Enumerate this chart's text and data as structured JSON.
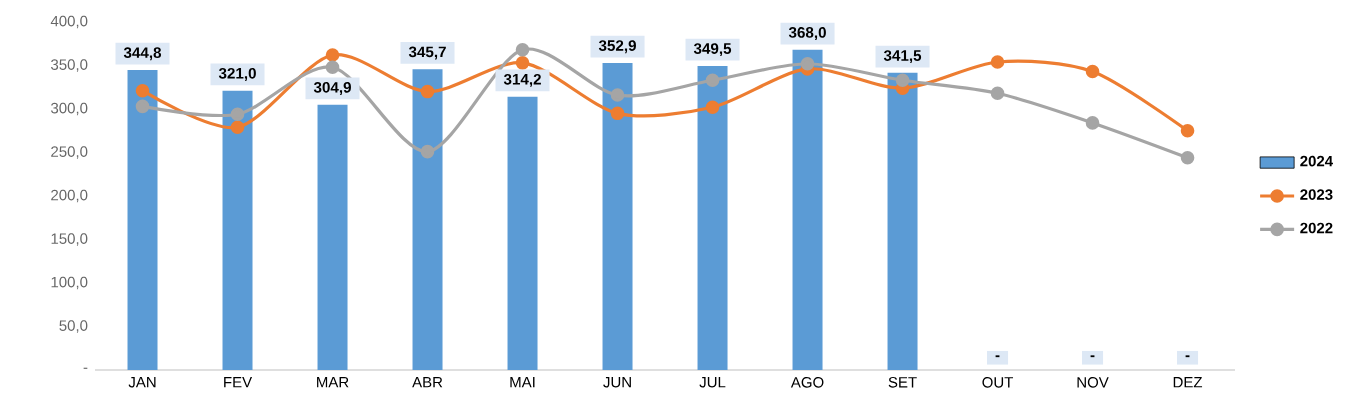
{
  "chart_data": {
    "type": "bar",
    "categories": [
      "JAN",
      "FEV",
      "MAR",
      "ABR",
      "MAI",
      "JUN",
      "JUL",
      "AGO",
      "SET",
      "OUT",
      "NOV",
      "DEZ"
    ],
    "series": [
      {
        "name": "2024",
        "type": "bar",
        "color": "#5b9bd5",
        "values": [
          344.8,
          321.0,
          304.9,
          345.7,
          314.2,
          352.9,
          349.5,
          368.0,
          341.5,
          0,
          0,
          0
        ],
        "value_labels": [
          "344,8",
          "321,0",
          "304,9",
          "345,7",
          "314,2",
          "352,9",
          "349,5",
          "368,0",
          "341,5",
          "-",
          "-",
          "-"
        ]
      },
      {
        "name": "2023",
        "type": "line",
        "color": "#ed7d31",
        "values": [
          321,
          279,
          362,
          320,
          353,
          295,
          302,
          346,
          324,
          354,
          343,
          275
        ]
      },
      {
        "name": "2022",
        "type": "line",
        "color": "#a5a5a5",
        "values": [
          303,
          294,
          348,
          251,
          368,
          316,
          333,
          352,
          333,
          318,
          284,
          244
        ]
      }
    ],
    "ylim": [
      0,
      400
    ],
    "yticks": [
      {
        "value": 0,
        "label": "-"
      },
      {
        "value": 50,
        "label": "50,0"
      },
      {
        "value": 100,
        "label": "100,0"
      },
      {
        "value": 150,
        "label": "150,0"
      },
      {
        "value": 200,
        "label": "200,0"
      },
      {
        "value": 250,
        "label": "250,0"
      },
      {
        "value": 300,
        "label": "300,0"
      },
      {
        "value": 350,
        "label": "350,0"
      },
      {
        "value": 400,
        "label": "400,0"
      }
    ],
    "legend": "right",
    "marker": "circle",
    "grid": false
  }
}
